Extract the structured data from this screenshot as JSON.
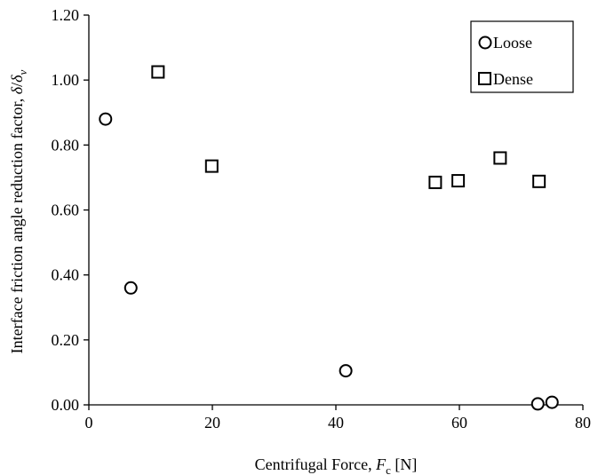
{
  "chart_data": {
    "type": "scatter",
    "title": "",
    "xlabel": {
      "prefix": "Centrifugal Force, ",
      "var": "F",
      "sub": "c",
      "suffix": " [N]"
    },
    "ylabel": {
      "prefix": "Interface friction angle reduction factor, ",
      "var_num": "δ",
      "slash": "/",
      "var_den": "δ",
      "sub": "v"
    },
    "xlim": [
      0,
      80
    ],
    "ylim": [
      0,
      1.2
    ],
    "x_ticks": [
      "0",
      "20",
      "40",
      "60",
      "80"
    ],
    "x_tick_values": [
      0,
      20,
      40,
      60,
      80
    ],
    "y_ticks": [
      "0.00",
      "0.20",
      "0.40",
      "0.60",
      "0.80",
      "1.00",
      "1.20"
    ],
    "y_tick_values": [
      0,
      0.2,
      0.4,
      0.6,
      0.8,
      1.0,
      1.2
    ],
    "grid": false,
    "legend_position": "top-right",
    "series": [
      {
        "name": "Loose",
        "marker": "circle",
        "points": [
          {
            "x": 2.7,
            "y": 0.88
          },
          {
            "x": 6.8,
            "y": 0.36
          },
          {
            "x": 41.6,
            "y": 0.105
          },
          {
            "x": 72.7,
            "y": 0.003
          },
          {
            "x": 75.0,
            "y": 0.008
          }
        ]
      },
      {
        "name": "Dense",
        "marker": "square",
        "points": [
          {
            "x": 11.2,
            "y": 1.025
          },
          {
            "x": 19.9,
            "y": 0.735
          },
          {
            "x": 56.1,
            "y": 0.685
          },
          {
            "x": 59.8,
            "y": 0.69
          },
          {
            "x": 66.6,
            "y": 0.76
          },
          {
            "x": 72.9,
            "y": 0.688
          }
        ]
      }
    ]
  }
}
